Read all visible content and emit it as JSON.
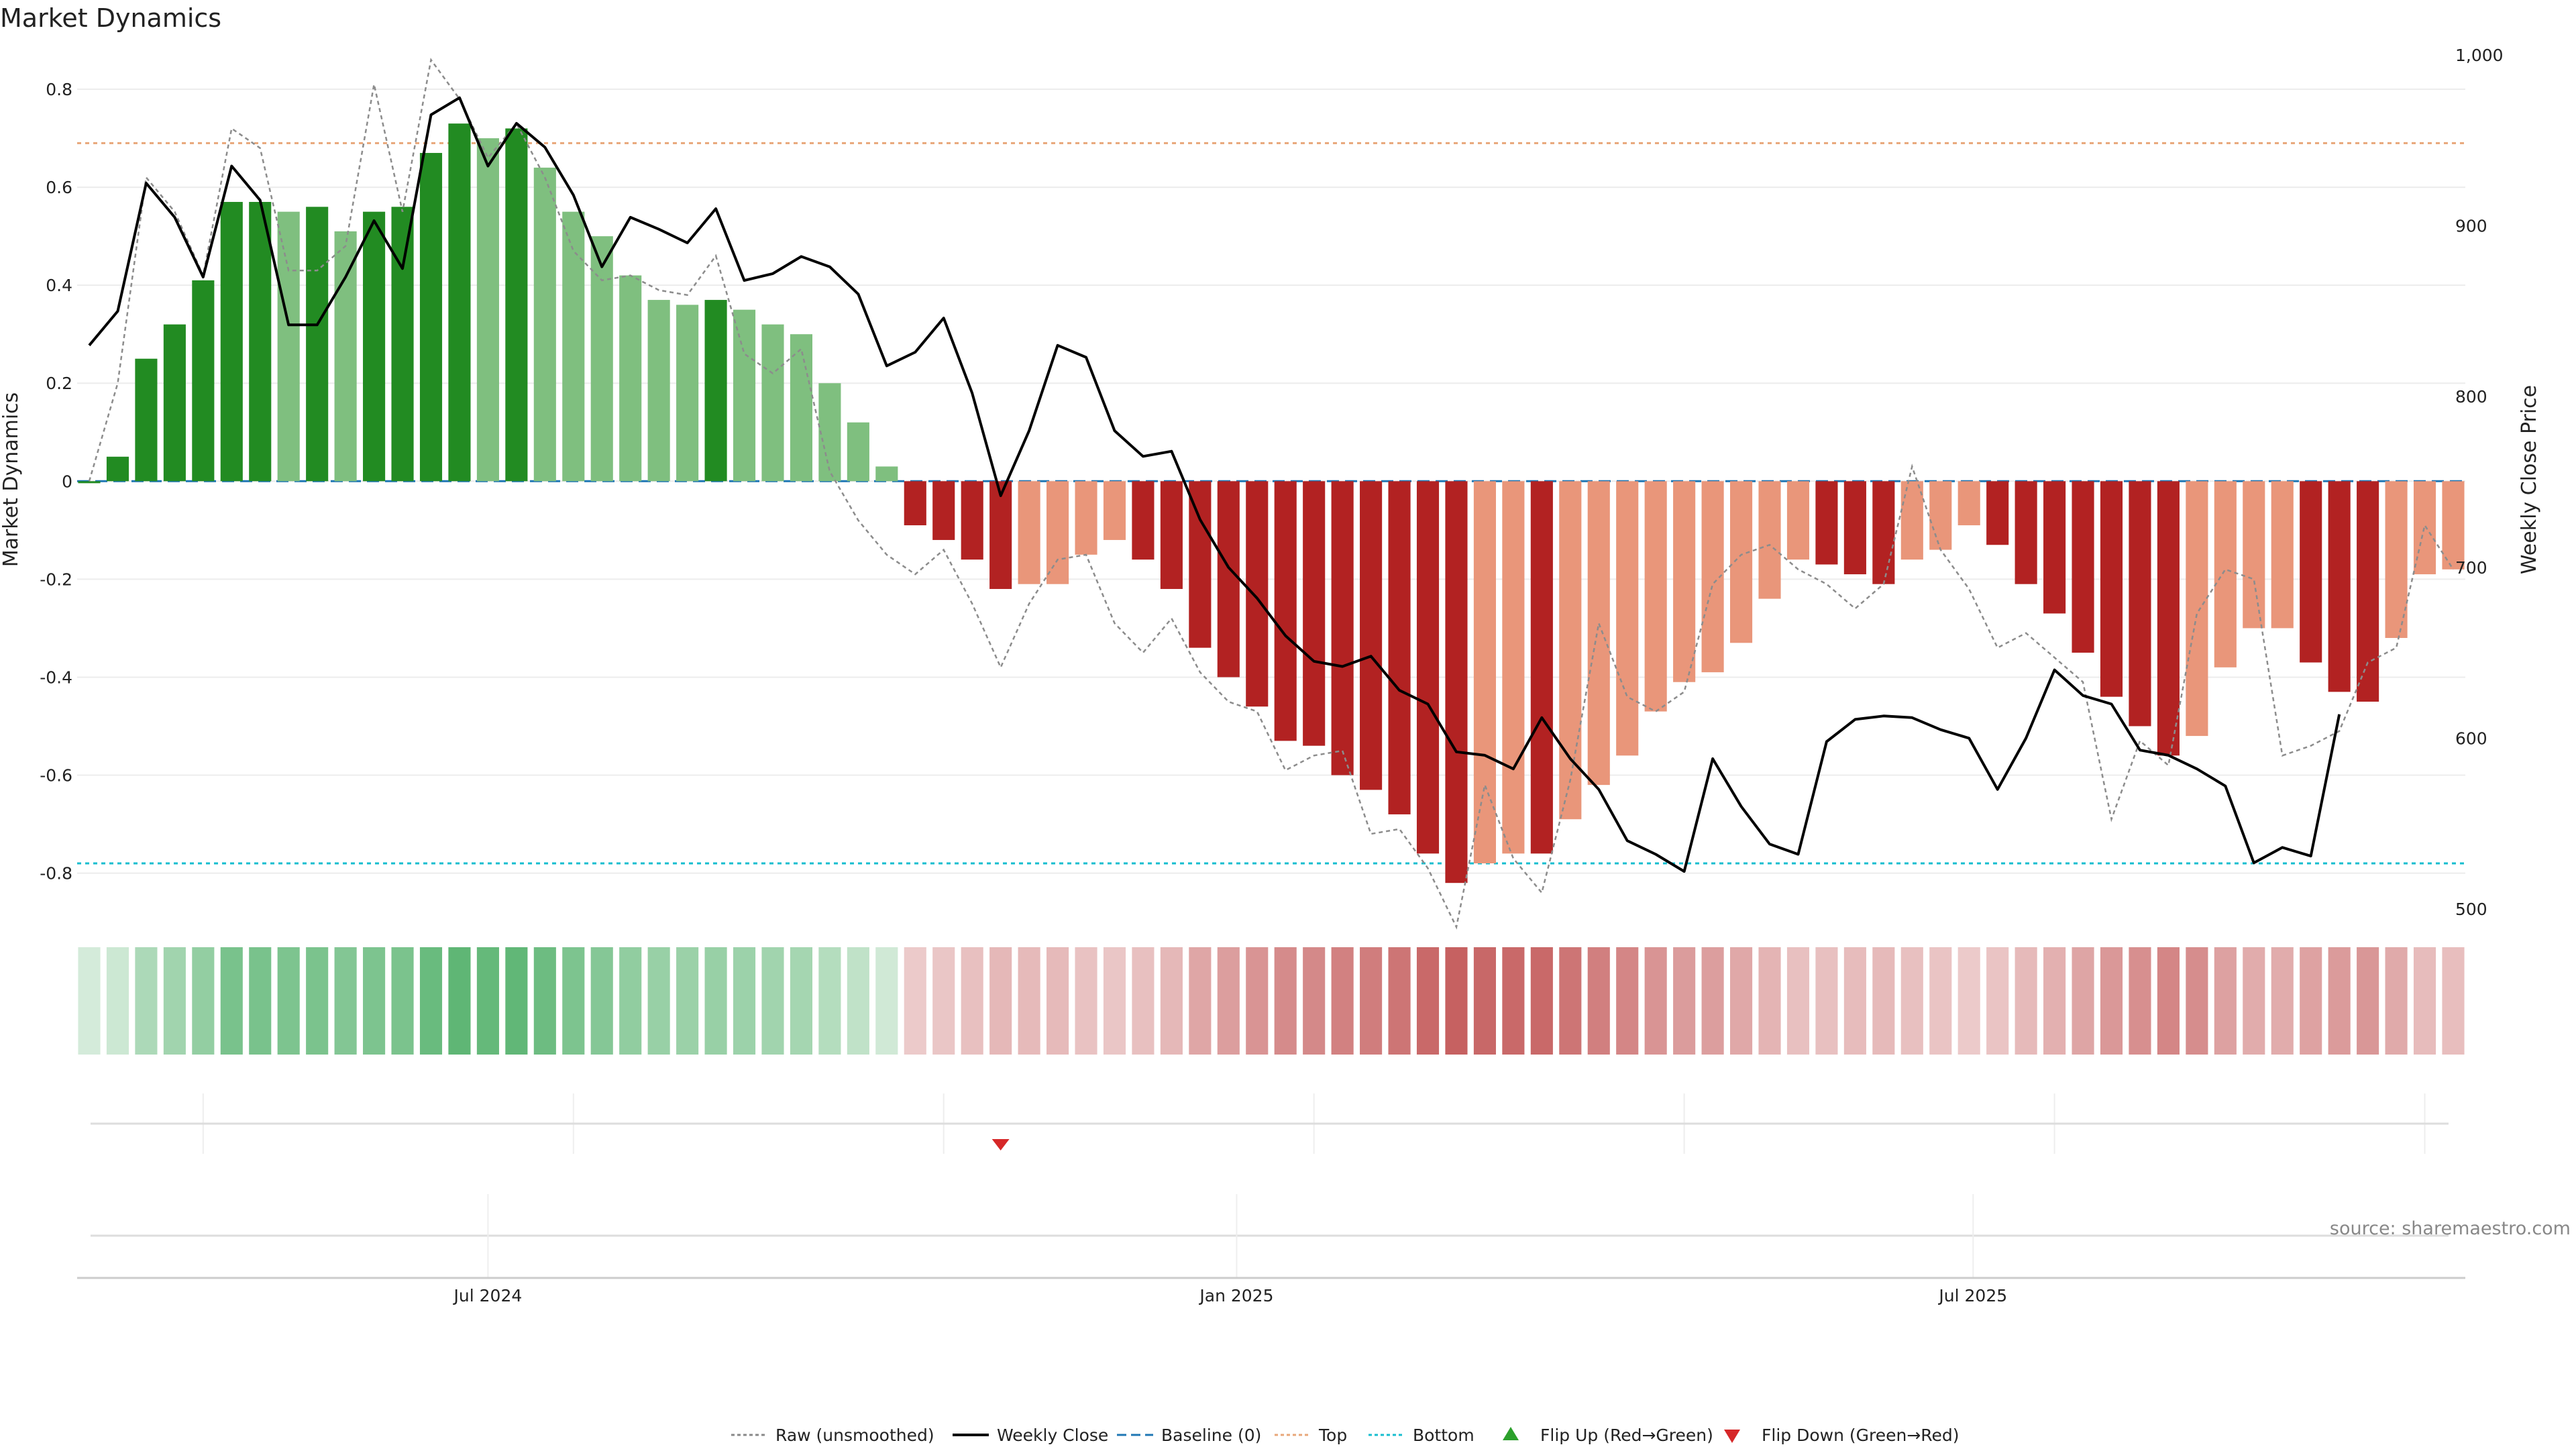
{
  "chart_data": {
    "type": "bar",
    "title": "Market Dynamics",
    "ylabel": "Market Dynamics",
    "y2label": "Weekly Close Price",
    "ylim": [
      -0.88,
      0.9
    ],
    "y2lim": [
      500,
      1000
    ],
    "yticks": [
      {
        "v": 0.8,
        "label": "0.8"
      },
      {
        "v": 0.6,
        "label": "0.6"
      },
      {
        "v": 0.4,
        "label": "0.4"
      },
      {
        "v": 0.2,
        "label": "0.2"
      },
      {
        "v": 0,
        "label": "0"
      },
      {
        "v": -0.2,
        "label": "-0.2"
      },
      {
        "v": -0.4,
        "label": "-0.4"
      },
      {
        "v": -0.6,
        "label": "-0.6"
      },
      {
        "v": -0.8,
        "label": "-0.8"
      }
    ],
    "y2ticks": [
      {
        "v": 1000,
        "label": "1,000"
      },
      {
        "v": 900,
        "label": "900"
      },
      {
        "v": 800,
        "label": "800"
      },
      {
        "v": 700,
        "label": "700"
      },
      {
        "v": 600,
        "label": "600"
      },
      {
        "v": 500,
        "label": "500"
      }
    ],
    "xticks": [
      {
        "date": "2024-07-01",
        "label": "Jul 2024"
      },
      {
        "date": "2025-01-01",
        "label": "Jan 2025"
      },
      {
        "date": "2025-07-01",
        "label": "Jul 2025"
      }
    ],
    "weeks": [
      "2024-03-25",
      "2024-04-01",
      "2024-04-08",
      "2024-04-15",
      "2024-04-22",
      "2024-04-29",
      "2024-05-06",
      "2024-05-13",
      "2024-05-20",
      "2024-05-27",
      "2024-06-03",
      "2024-06-10",
      "2024-06-17",
      "2024-06-24",
      "2024-07-01",
      "2024-07-08",
      "2024-07-15",
      "2024-07-22",
      "2024-07-29",
      "2024-08-05",
      "2024-08-12",
      "2024-08-19",
      "2024-08-26",
      "2024-09-02",
      "2024-09-09",
      "2024-09-16",
      "2024-09-23",
      "2024-09-30",
      "2024-10-07",
      "2024-10-14",
      "2024-10-21",
      "2024-10-28",
      "2024-11-04",
      "2024-11-11",
      "2024-11-18",
      "2024-11-25",
      "2024-12-02",
      "2024-12-09",
      "2024-12-16",
      "2024-12-23",
      "2024-12-30",
      "2025-01-06",
      "2025-01-13",
      "2025-01-20",
      "2025-01-27",
      "2025-02-03",
      "2025-02-10",
      "2025-02-17",
      "2025-02-24",
      "2025-03-03",
      "2025-03-10",
      "2025-03-17",
      "2025-03-24",
      "2025-03-31",
      "2025-04-07",
      "2025-04-14",
      "2025-04-21",
      "2025-04-28",
      "2025-05-05",
      "2025-05-12",
      "2025-05-19",
      "2025-05-26",
      "2025-06-02",
      "2025-06-09",
      "2025-06-16",
      "2025-06-23",
      "2025-06-30",
      "2025-07-07",
      "2025-07-14",
      "2025-07-21",
      "2025-07-28",
      "2025-08-04",
      "2025-08-11",
      "2025-08-18",
      "2025-08-25",
      "2025-09-01",
      "2025-09-08",
      "2025-09-15",
      "2025-09-22",
      "2025-09-29",
      "2025-10-06",
      "2025-10-13",
      "2025-10-20",
      "2025-10-27"
    ],
    "series": [
      {
        "name": "Market Dynamics",
        "values": [
          0.0,
          0.05,
          0.25,
          0.32,
          0.41,
          0.57,
          0.57,
          0.55,
          0.56,
          0.51,
          0.55,
          0.56,
          0.67,
          0.73,
          0.7,
          0.72,
          0.64,
          0.55,
          0.5,
          0.42,
          0.37,
          0.36,
          0.37,
          0.35,
          0.32,
          0.3,
          0.2,
          0.12,
          0.03,
          -0.09,
          -0.12,
          -0.16,
          -0.22,
          -0.21,
          -0.21,
          -0.15,
          -0.12,
          -0.16,
          -0.22,
          -0.34,
          -0.4,
          -0.46,
          -0.53,
          -0.54,
          -0.6,
          -0.63,
          -0.68,
          -0.76,
          -0.82,
          -0.78,
          -0.76,
          -0.76,
          -0.69,
          -0.62,
          -0.56,
          -0.47,
          -0.41,
          -0.39,
          -0.33,
          -0.24,
          -0.16,
          -0.17,
          -0.19,
          -0.21,
          -0.16,
          -0.14,
          -0.09,
          -0.13,
          -0.21,
          -0.27,
          -0.35,
          -0.44,
          -0.5,
          -0.56,
          -0.52,
          -0.38,
          -0.3,
          -0.3,
          -0.37,
          -0.43,
          -0.45,
          -0.32,
          -0.19,
          -0.18
        ],
        "colors": [
          "#228b22",
          "#228b22",
          "#228b22",
          "#228b22",
          "#228b22",
          "#228b22",
          "#228b22",
          "#7fbf7f",
          "#228b22",
          "#7fbf7f",
          "#228b22",
          "#228b22",
          "#228b22",
          "#228b22",
          "#7fbf7f",
          "#228b22",
          "#7fbf7f",
          "#7fbf7f",
          "#7fbf7f",
          "#7fbf7f",
          "#7fbf7f",
          "#7fbf7f",
          "#228b22",
          "#7fbf7f",
          "#7fbf7f",
          "#7fbf7f",
          "#7fbf7f",
          "#7fbf7f",
          "#7fbf7f",
          "#b22222",
          "#b22222",
          "#b22222",
          "#b22222",
          "#e9967a",
          "#e9967a",
          "#e9967a",
          "#e9967a",
          "#b22222",
          "#b22222",
          "#b22222",
          "#b22222",
          "#b22222",
          "#b22222",
          "#b22222",
          "#b22222",
          "#b22222",
          "#b22222",
          "#b22222",
          "#b22222",
          "#e9967a",
          "#e9967a",
          "#b22222",
          "#e9967a",
          "#e9967a",
          "#e9967a",
          "#e9967a",
          "#e9967a",
          "#e9967a",
          "#e9967a",
          "#e9967a",
          "#e9967a",
          "#b22222",
          "#b22222",
          "#b22222",
          "#e9967a",
          "#e9967a",
          "#e9967a",
          "#b22222",
          "#b22222",
          "#b22222",
          "#b22222",
          "#b22222",
          "#b22222",
          "#b22222",
          "#e9967a",
          "#e9967a",
          "#e9967a",
          "#e9967a",
          "#b22222",
          "#b22222",
          "#b22222",
          "#e9967a",
          "#e9967a",
          "#e9967a"
        ]
      },
      {
        "name": "Raw (unsmoothed)",
        "values": [
          0.0,
          0.2,
          0.62,
          0.55,
          0.42,
          0.72,
          0.68,
          0.43,
          0.43,
          0.48,
          0.81,
          0.55,
          0.86,
          0.78,
          0.66,
          0.73,
          0.62,
          0.47,
          0.41,
          0.42,
          0.39,
          0.38,
          0.46,
          0.26,
          0.22,
          0.27,
          0.02,
          -0.08,
          -0.15,
          -0.19,
          -0.14,
          -0.25,
          -0.38,
          -0.25,
          -0.16,
          -0.15,
          -0.29,
          -0.35,
          -0.28,
          -0.39,
          -0.45,
          -0.47,
          -0.59,
          -0.56,
          -0.55,
          -0.72,
          -0.71,
          -0.79,
          -0.91,
          -0.62,
          -0.77,
          -0.84,
          -0.61,
          -0.29,
          -0.44,
          -0.47,
          -0.43,
          -0.21,
          -0.15,
          -0.13,
          -0.18,
          -0.21,
          -0.26,
          -0.21,
          0.03,
          -0.14,
          -0.22,
          -0.34,
          -0.31,
          -0.36,
          -0.41,
          -0.69,
          -0.53,
          -0.58,
          -0.27,
          -0.18,
          -0.2,
          -0.56,
          -0.54,
          -0.51,
          -0.37,
          -0.34,
          -0.09,
          -0.18
        ]
      },
      {
        "name": "Weekly Close",
        "values": [
          830,
          850,
          925,
          905,
          870,
          935,
          915,
          842,
          842,
          870,
          903,
          875,
          965,
          975,
          935,
          960,
          946,
          918,
          876,
          905,
          898,
          890,
          910,
          868,
          872,
          882,
          876,
          860,
          818,
          826,
          846,
          802,
          742,
          780,
          830,
          823,
          780,
          765,
          768,
          728,
          700,
          682,
          660,
          645,
          642,
          648,
          628,
          620,
          592,
          590,
          582,
          612,
          588,
          570,
          540,
          532,
          522,
          588,
          560,
          538,
          532,
          598,
          611,
          613,
          612,
          605,
          600,
          570,
          600,
          640,
          625,
          620,
          593,
          590,
          582,
          572,
          527,
          536,
          531,
          614
        ]
      }
    ],
    "reference_lines": [
      {
        "name": "Baseline (0)",
        "value": 0,
        "color": "#1f77b4"
      },
      {
        "name": "Top",
        "value": 0.69,
        "color": "#e8a77a"
      },
      {
        "name": "Bottom",
        "value": -0.78,
        "color": "#17becf"
      }
    ],
    "flips": [
      {
        "name": "Flip Down (Green→Red)",
        "date": "2024-11-04",
        "color": "#d62728"
      }
    ],
    "legend_position": "bottom",
    "legend": [
      {
        "label": "Raw (unsmoothed)",
        "kind": "dotted",
        "color": "#888888"
      },
      {
        "label": "Weekly Close",
        "kind": "solid",
        "color": "#000000"
      },
      {
        "label": "Baseline (0)",
        "kind": "dashed",
        "color": "#1f77b4"
      },
      {
        "label": "Top",
        "kind": "dotted",
        "color": "#e8a77a"
      },
      {
        "label": "Bottom",
        "kind": "dotted",
        "color": "#17becf"
      },
      {
        "label": "Flip Up (Red→Green)",
        "kind": "tri-up",
        "color": "#2ca02c"
      },
      {
        "label": "Flip Down (Green→Red)",
        "kind": "tri-down",
        "color": "#d62728"
      }
    ],
    "source": "source: sharemaestro.com"
  }
}
